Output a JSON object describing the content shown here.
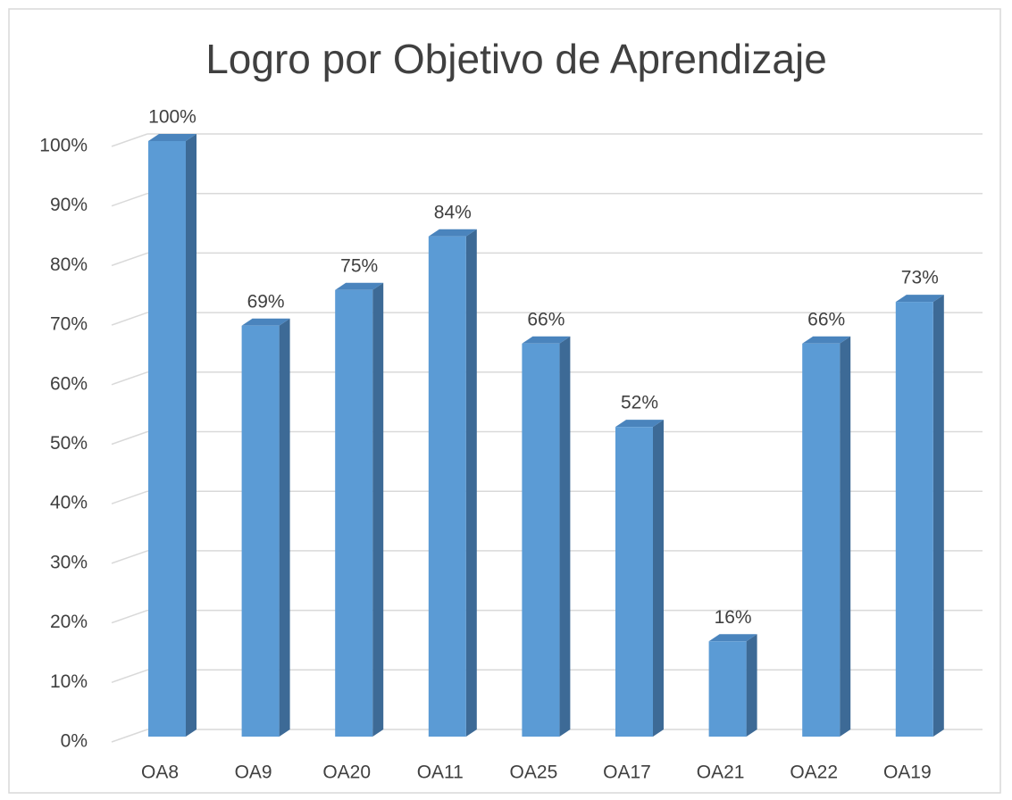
{
  "chart_data": {
    "type": "bar3d",
    "title": "Logro por Objetivo de Aprendizaje",
    "categories": [
      "OA8",
      "OA9",
      "OA20",
      "OA11",
      "OA25",
      "OA17",
      "OA21",
      "OA22",
      "OA19"
    ],
    "values": [
      100,
      69,
      75,
      84,
      66,
      52,
      16,
      66,
      73
    ],
    "value_labels": [
      "100%",
      "69%",
      "75%",
      "84%",
      "66%",
      "52%",
      "16%",
      "66%",
      "73%"
    ],
    "color": "#5b9bd5",
    "ylim": [
      0,
      100
    ],
    "yticks": [
      {
        "value": 0,
        "label": "0%"
      },
      {
        "value": 10,
        "label": "10%"
      },
      {
        "value": 20,
        "label": "20%"
      },
      {
        "value": 30,
        "label": "30%"
      },
      {
        "value": 40,
        "label": "40%"
      },
      {
        "value": 50,
        "label": "50%"
      },
      {
        "value": 60,
        "label": "60%"
      },
      {
        "value": 70,
        "label": "70%"
      },
      {
        "value": 80,
        "label": "80%"
      },
      {
        "value": 90,
        "label": "90%"
      },
      {
        "value": 100,
        "label": "100%"
      }
    ],
    "grid": true
  }
}
